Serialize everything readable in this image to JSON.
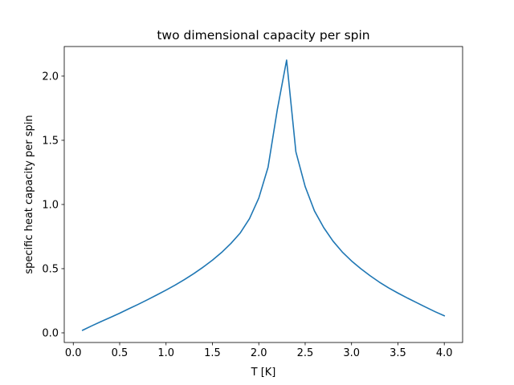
{
  "chart_data": {
    "type": "line",
    "title": "two dimensional capacity per spin",
    "xlabel": "T [K]",
    "ylabel": "specific heat capacity per spin",
    "xlim": [
      -0.0975,
      4.1975
    ],
    "ylim": [
      -0.0751,
      2.2306
    ],
    "xticks": [
      0.0,
      0.5,
      1.0,
      1.5,
      2.0,
      2.5,
      3.0,
      3.5,
      4.0
    ],
    "xtick_labels": [
      "0.0",
      "0.5",
      "1.0",
      "1.5",
      "2.0",
      "2.5",
      "3.0",
      "3.5",
      "4.0"
    ],
    "yticks": [
      0.0,
      0.5,
      1.0,
      1.5,
      2.0
    ],
    "ytick_labels": [
      "0.0",
      "0.5",
      "1.0",
      "1.5",
      "2.0"
    ],
    "grid": false,
    "legend": "none",
    "series": [
      {
        "color": "#1f77b4",
        "x": [
          0.1,
          0.2,
          0.3,
          0.4,
          0.5,
          0.6,
          0.7,
          0.8,
          0.9,
          1.0,
          1.1,
          1.2,
          1.3,
          1.4,
          1.5,
          1.6,
          1.7,
          1.8,
          1.9,
          2.0,
          2.1,
          2.2,
          2.3,
          2.4,
          2.5,
          2.6,
          2.7,
          2.8,
          2.9,
          3.0,
          3.1,
          3.2,
          3.3,
          3.4,
          3.5,
          3.6,
          3.7,
          3.8,
          3.9,
          4.0
        ],
        "y": [
          0.02,
          0.055,
          0.088,
          0.12,
          0.153,
          0.188,
          0.222,
          0.258,
          0.295,
          0.333,
          0.373,
          0.416,
          0.462,
          0.512,
          0.566,
          0.627,
          0.697,
          0.778,
          0.89,
          1.05,
          1.29,
          1.74,
          2.125,
          1.41,
          1.14,
          0.95,
          0.82,
          0.715,
          0.63,
          0.56,
          0.5,
          0.445,
          0.395,
          0.35,
          0.31,
          0.272,
          0.236,
          0.2,
          0.165,
          0.133
        ]
      }
    ]
  }
}
